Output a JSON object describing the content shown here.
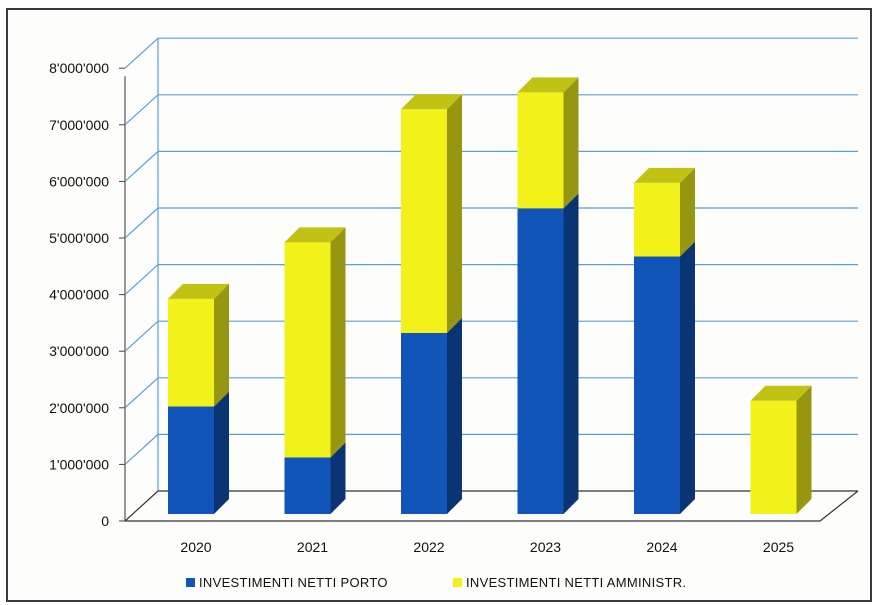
{
  "chart_data": {
    "type": "bar",
    "stacked": true,
    "three_d": true,
    "categories": [
      "2020",
      "2021",
      "2022",
      "2023",
      "2024",
      "2025"
    ],
    "series": [
      {
        "name": "INVESTIMENTI NETTI PORTO",
        "color": "#1155b8",
        "values": [
          1900000,
          1000000,
          3200000,
          5400000,
          4550000,
          0
        ]
      },
      {
        "name": "INVESTIMENTI NETTI AMMINISTR.",
        "color": "#f2f21a",
        "values": [
          1900000,
          3800000,
          3950000,
          2050000,
          1300000,
          2000000
        ]
      }
    ],
    "y_ticks": [
      "0",
      "1'000'000",
      "2'000'000",
      "3'000'000",
      "4'000'000",
      "5'000'000",
      "6'000'000",
      "7'000'000",
      "8'000'000"
    ],
    "ylim": [
      0,
      8000000
    ],
    "grid": true,
    "grid_color": "#5aa0d8",
    "legend_position": "bottom"
  }
}
